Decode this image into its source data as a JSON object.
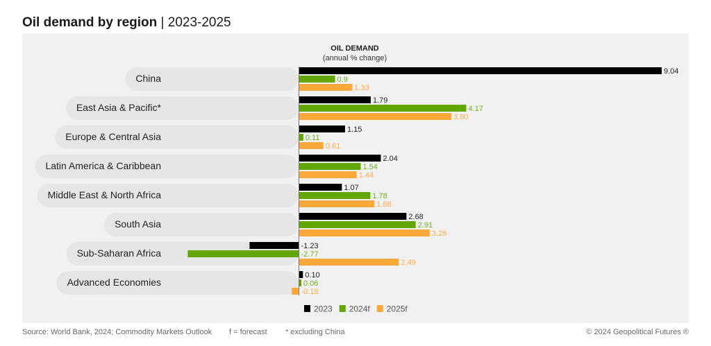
{
  "title": {
    "main": "Oil demand by region",
    "separator": "|",
    "sub": "2023-2025"
  },
  "chart_data": {
    "type": "bar",
    "orientation": "horizontal",
    "title": "Oil demand by region | 2023-2025",
    "header": "OIL DEMAND",
    "subheader": "(annual % change)",
    "xlabel": "annual % change",
    "ylabel": "",
    "xlim": [
      -3,
      9.5
    ],
    "grid": false,
    "legend_position": "bottom-center",
    "categories": [
      "China",
      "East Asia & Pacific*",
      "Europe & Central Asia",
      "Latin America & Caribbean",
      "Middle East & North Africa",
      "South Asia",
      "Sub-Saharan Africa",
      "Advanced Economies"
    ],
    "series": [
      {
        "name": "2023",
        "color": "#000000",
        "label_color": "#222222",
        "values": [
          9.04,
          1.79,
          1.15,
          2.04,
          1.07,
          2.68,
          -1.23,
          0.1
        ],
        "labels": [
          "9.04",
          "1.79",
          "1.15",
          "2.04",
          "1.07",
          "2.68",
          "-1.23",
          "0.10"
        ]
      },
      {
        "name": "2024f",
        "color": "#62a600",
        "label_color": "#6fb01e",
        "values": [
          0.9,
          4.17,
          0.11,
          1.54,
          1.78,
          2.91,
          -2.77,
          0.06
        ],
        "labels": [
          "0.9",
          "4.17",
          "0.11",
          "1.54",
          "1.78",
          "2.91",
          "-2.77",
          "0.06"
        ]
      },
      {
        "name": "2025f",
        "color": "#ffa83a",
        "label_color": "#ffab45",
        "values": [
          1.33,
          3.8,
          0.61,
          1.44,
          1.88,
          3.26,
          2.49,
          -0.18
        ],
        "labels": [
          "1.33",
          "3.80",
          "0.61",
          "1.44",
          "1.88",
          "3.26",
          "2.49",
          "-0.18"
        ]
      }
    ]
  },
  "footer": {
    "source": "Source: World Bank, 2024; Commodity Markets Outlook",
    "forecast_note": "f = forecast",
    "asterisk_note": "* excluding China",
    "copyright": "© 2024 Geopolitical Futures ®"
  }
}
